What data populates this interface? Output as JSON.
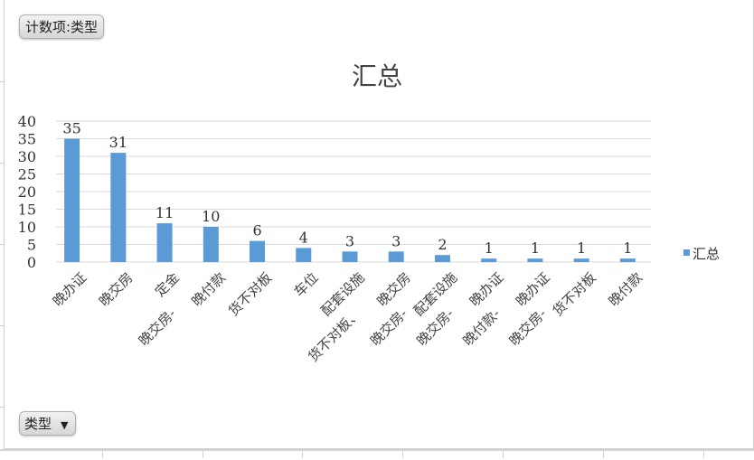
{
  "field_button": {
    "label": "计数项:类型"
  },
  "axis_field_button": {
    "label": "类型",
    "icon": "dropdown-arrow-icon"
  },
  "chart_data": {
    "type": "bar",
    "title": "汇总",
    "categories": [
      "晚办证",
      "晚交房",
      "定金",
      "晚交房- 晚付款",
      "货不对板",
      "车位",
      "配套设施",
      "货不对板、晚交房",
      "晚交房- 配套设施",
      "晚交房- 晚办证",
      "晚付款- 晚办证",
      "晚交房- 货不对板",
      "晚付款"
    ],
    "category_lines": [
      [
        "晚办证"
      ],
      [
        "晚交房"
      ],
      [
        "定金"
      ],
      [
        "晚交房-",
        "晚付款"
      ],
      [
        "货不对板"
      ],
      [
        "车位"
      ],
      [
        "配套设施"
      ],
      [
        "货不对板、",
        "晚交房"
      ],
      [
        "晚交房-",
        "配套设施"
      ],
      [
        "晚交房-",
        "晚办证"
      ],
      [
        "晚付款-",
        "晚办证"
      ],
      [
        "晚交房-",
        "货不对板"
      ],
      [
        "晚付款"
      ]
    ],
    "series": [
      {
        "name": "汇总",
        "values": [
          35,
          31,
          11,
          10,
          6,
          4,
          3,
          3,
          2,
          1,
          1,
          1,
          1
        ]
      }
    ],
    "ylim": [
      0,
      40
    ],
    "yticks": [
      0,
      5,
      10,
      15,
      20,
      25,
      30,
      35,
      40
    ],
    "grid": true,
    "legend": "right",
    "data_labels": true,
    "bar_color": "#5b9bd5"
  }
}
